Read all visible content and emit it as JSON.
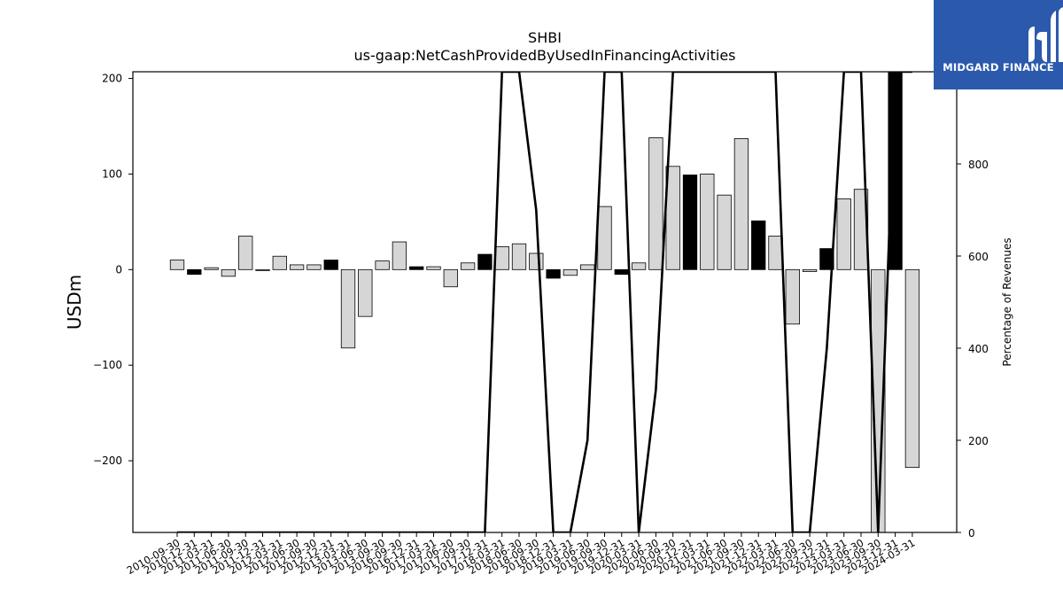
{
  "logo": {
    "brand": "MIDGARD FINANCE",
    "color": "#2b5aad"
  },
  "chart_data": {
    "type": "bar",
    "title": "SHBI",
    "subtitle": "us-gaap:NetCashProvidedByUsedInFinancingActivities",
    "ylabel": "USDm",
    "y2label": "Percentage of Revenues",
    "ylim": [
      -275,
      207
    ],
    "y2lim": [
      0,
      1000
    ],
    "yticks": [
      200,
      100,
      0,
      -100,
      -200
    ],
    "y2ticks": [
      0,
      200,
      400,
      600,
      800
    ],
    "categories": [
      "2010-09-30",
      "2010-12-31",
      "2011-03-31",
      "2011-06-30",
      "2011-09-30",
      "2011-12-31",
      "2012-03-31",
      "2012-06-30",
      "2012-09-30",
      "2012-12-31",
      "2013-03-31",
      "2013-06-30",
      "2013-09-30",
      "2016-09-30",
      "2016-12-31",
      "2017-03-31",
      "2017-06-30",
      "2017-09-30",
      "2017-12-31",
      "2018-03-31",
      "2018-06-30",
      "2018-09-30",
      "2018-12-31",
      "2019-03-31",
      "2019-06-30",
      "2019-09-30",
      "2019-12-31",
      "2020-03-31",
      "2020-06-30",
      "2020-09-30",
      "2020-12-31",
      "2021-03-31",
      "2021-06-30",
      "2021-09-30",
      "2021-12-31",
      "2022-03-31",
      "2022-06-30",
      "2022-09-30",
      "2022-12-31",
      "2023-03-31",
      "2023-06-30",
      "2023-09-30",
      "2023-12-31",
      "2024-03-31"
    ],
    "xtick_labels": [
      "2010-09-30",
      "2010-12-31",
      "2011-03-31",
      "2011-06-30",
      "2011-09-30",
      "2011-12-31",
      "2012-03-31",
      "2012-06-30",
      "2012-09-30",
      "2012-12-31",
      "2013-03-31",
      "2013-06-30",
      "2013-09-30",
      "2016-09-30",
      "2016-12-31",
      "2017-03-31",
      "2017-06-30",
      "2017-09-30",
      "2017-12-31",
      "2018-03-31",
      "2018-06-30",
      "2018-09-30",
      "2018-12-31",
      "2019-03-31",
      "2019-06-30",
      "2019-09-30",
      "2019-12-31",
      "2020-03-31",
      "2020-06-30",
      "2020-09-30",
      "2020-12-31",
      "2021-03-31",
      "2021-06-30",
      "2021-09-30",
      "2021-12-31",
      "2022-03-31",
      "2022-06-30",
      "2022-09-30",
      "2022-12-31",
      "2023-03-31",
      "2023-06-30",
      "2023-09-30",
      "2023-12-31",
      "2024-03-31"
    ],
    "series": [
      {
        "type": "bar",
        "values": [
          10,
          -5,
          2,
          -7,
          35,
          -1,
          14,
          5,
          5,
          10,
          -82,
          -49,
          9,
          29,
          3,
          3,
          -18,
          7,
          16,
          24,
          27,
          17,
          -9,
          -6,
          5,
          66,
          -5,
          7,
          138,
          108,
          99,
          100,
          78,
          137,
          51,
          35,
          -57,
          -2,
          22,
          74,
          84,
          -275,
          207,
          -207
        ],
        "highlight": [
          false,
          true,
          false,
          false,
          false,
          false,
          false,
          false,
          false,
          true,
          false,
          false,
          false,
          false,
          true,
          false,
          false,
          false,
          true,
          false,
          false,
          false,
          true,
          false,
          false,
          false,
          true,
          false,
          false,
          false,
          true,
          false,
          false,
          false,
          true,
          false,
          false,
          false,
          true,
          false,
          false,
          false,
          true,
          false
        ],
        "colors": {
          "normal": "#d6d6d6",
          "highlight": "#000000"
        }
      },
      {
        "type": "line",
        "axis": "y2",
        "values": [
          0,
          0,
          0,
          0,
          0,
          0,
          0,
          0,
          0,
          0,
          0,
          0,
          0,
          0,
          0,
          0,
          0,
          0,
          0,
          1000,
          1000,
          700,
          0,
          0,
          200,
          1000,
          1000,
          0,
          310,
          1000,
          1000,
          1000,
          1000,
          1000,
          1000,
          1000,
          0,
          0,
          400,
          1000,
          1000,
          0,
          1000,
          1000
        ],
        "color": "#000000"
      }
    ]
  }
}
